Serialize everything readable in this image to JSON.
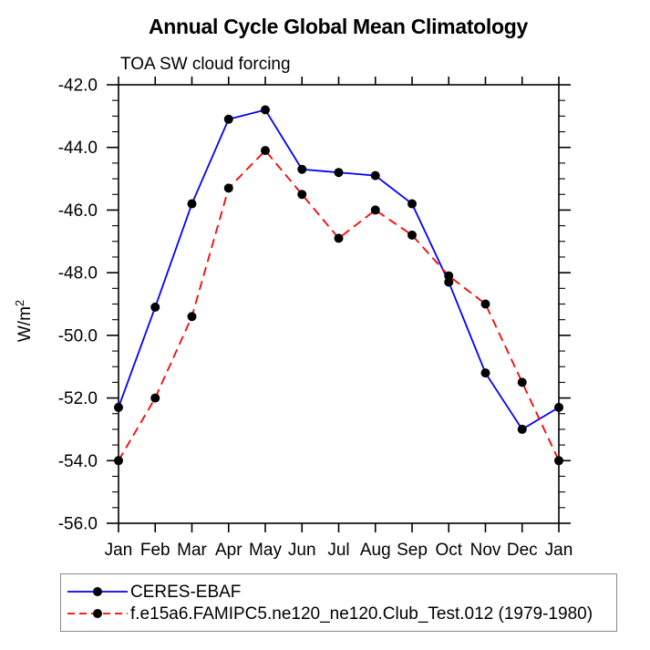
{
  "chart_data": {
    "type": "line",
    "title": "Annual Cycle Global Mean Climatology",
    "subtitle": "TOA SW cloud forcing",
    "ylabel": "W/m²",
    "ylabel_base": "W/m",
    "ylabel_exponent": "2",
    "categories": [
      "Jan",
      "Feb",
      "Mar",
      "Apr",
      "May",
      "Jun",
      "Jul",
      "Aug",
      "Sep",
      "Oct",
      "Nov",
      "Dec",
      "Jan"
    ],
    "series": [
      {
        "name": "CERES-EBAF",
        "color": "#0000ff",
        "line_style": "solid",
        "marker": "black-filled-circle",
        "values": [
          -52.3,
          -49.1,
          -45.8,
          -43.1,
          -42.8,
          -44.7,
          -44.8,
          -44.9,
          -45.8,
          -48.3,
          -51.2,
          -53.0,
          -52.3
        ]
      },
      {
        "name": "f.e15a6.FAMIPC5.ne120_ne120.Club_Test.012 (1979-1980)",
        "color": "#ff0000",
        "line_style": "dashed",
        "marker": "black-filled-circle",
        "values": [
          -54.0,
          -52.0,
          -49.4,
          -45.3,
          -44.1,
          -45.5,
          -46.9,
          -46.0,
          -46.8,
          -48.1,
          -49.0,
          -51.5,
          -54.0
        ]
      }
    ],
    "ylim": [
      -56.0,
      -42.0
    ],
    "ytick_labels": [
      "-42.0",
      "-44.0",
      "-46.0",
      "-48.0",
      "-50.0",
      "-52.0",
      "-54.0",
      "-56.0"
    ],
    "ytick_major_step": 2.0,
    "ytick_minor_step": 0.5,
    "marker_color": "#000000",
    "grid": false,
    "legend_position": "bottom-left-outside"
  }
}
